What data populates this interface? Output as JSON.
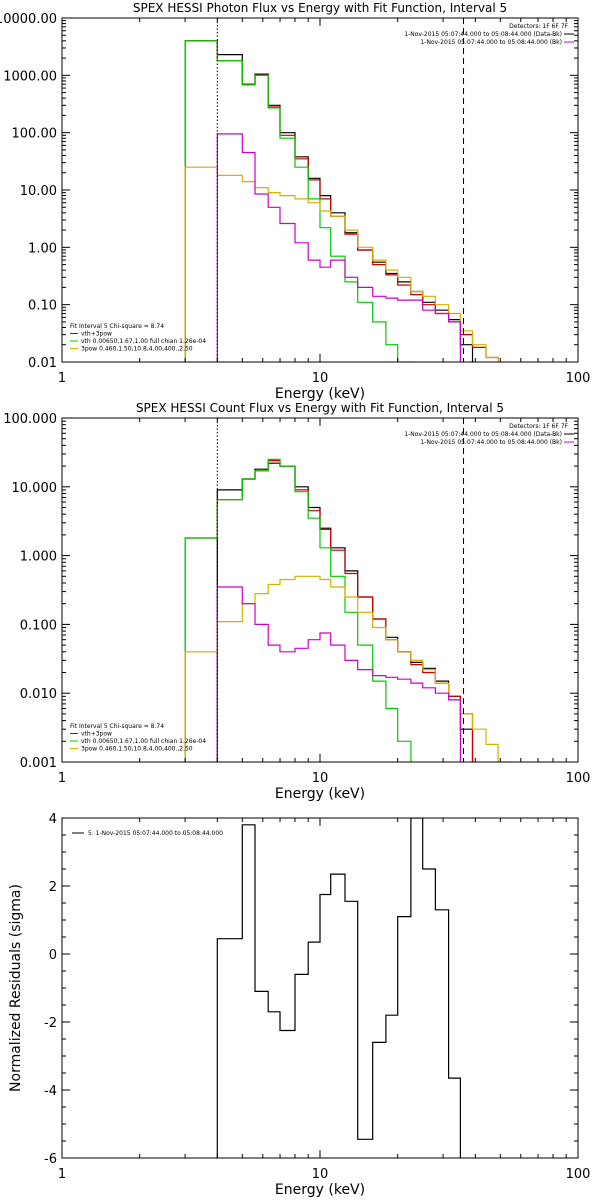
{
  "chart_data": [
    {
      "type": "line",
      "title": "SPEX HESSI Photon Flux vs Energy with Fit Function, Interval 5",
      "xlabel": "Energy (keV)",
      "ylabel": "",
      "xscale": "log",
      "yscale": "log",
      "xlim": [
        1,
        100
      ],
      "ylim": [
        0.01,
        10000
      ],
      "xtick_labels": [
        "1",
        "10",
        "100"
      ],
      "ytick_labels": [
        "10000.00",
        "1000.00",
        "100.00",
        "10.00",
        "1.00",
        "0.10",
        "0.01"
      ],
      "ytick_values": [
        10000,
        1000,
        100,
        10,
        1,
        0.1,
        0.01
      ],
      "fit_range_lines": [
        {
          "x": 4.0,
          "style": "dotted",
          "color": "#000000"
        },
        {
          "x": 36.0,
          "style": "dashed",
          "color": "#000000"
        }
      ],
      "legend_top": {
        "header": "Detectors: 1F 6F 7F",
        "entries": [
          {
            "label": "1-Nov-2015 05:07:44.000 to 05:08:44.000 (Data-Bk)",
            "color": "#000000"
          },
          {
            "label": "1-Nov-2015 05:07:44.000 to 05:08:44.000 (Bk)",
            "color": "#cc00cc"
          }
        ]
      },
      "legend_fit": {
        "header": "Fit Interval 5   Chi-square = 8.74",
        "entries": [
          {
            "label": "vth+3pow",
            "color": "#cc0000"
          },
          {
            "label": "vth 0.00650,1.67,1.00   full chian 1.26e-04",
            "color": "#00cc00"
          },
          {
            "label": "3pow 0.460,1.50,10.8,4.00,400.,2.50",
            "color": "#d4b000"
          }
        ]
      },
      "series": [
        {
          "color": "#000000",
          "edges": [
            3,
            4,
            5,
            5.6,
            6.3,
            7,
            8,
            9,
            10,
            11,
            12.5,
            14,
            16,
            18,
            20,
            22.5,
            25,
            28,
            31.5,
            35,
            39
          ],
          "values": [
            4000,
            2300,
            700,
            1050,
            300,
            100,
            38,
            16,
            8,
            4,
            1.8,
            0.9,
            0.55,
            0.35,
            0.25,
            0.17,
            0.11,
            0.08,
            0.055,
            0.02
          ]
        },
        {
          "color": "#cc0000",
          "edges": [
            3,
            4,
            5,
            5.6,
            6.3,
            7,
            8,
            9,
            10,
            11,
            12.5,
            14,
            16,
            18,
            20,
            22.5,
            25,
            28,
            31.5,
            35,
            39,
            44,
            49
          ],
          "values": [
            4000,
            1800,
            680,
            1000,
            280,
            90,
            35,
            15,
            7,
            3.5,
            1.7,
            0.9,
            0.5,
            0.33,
            0.22,
            0.15,
            0.1,
            0.07,
            0.05,
            0.03,
            0.018,
            0.012
          ]
        },
        {
          "color": "#00cc00",
          "edges": [
            3,
            4,
            5,
            5.6,
            6.3,
            7,
            8,
            9,
            10,
            11,
            12.5,
            14,
            16,
            18,
            20,
            22.5
          ],
          "values": [
            4000,
            1800,
            680,
            1000,
            270,
            80,
            25,
            7,
            2.2,
            0.7,
            0.25,
            0.11,
            0.05,
            0.02,
            0.008
          ]
        },
        {
          "color": "#d4b000",
          "edges": [
            3,
            4,
            5,
            5.6,
            6.3,
            7,
            8,
            9,
            10,
            11,
            12.5,
            14,
            16,
            18,
            20,
            22.5,
            25,
            28,
            31.5,
            35,
            39,
            44,
            49
          ],
          "values": [
            25,
            18,
            14,
            11,
            9,
            8,
            7,
            6,
            4.3,
            3.5,
            2,
            1,
            0.6,
            0.4,
            0.3,
            0.17,
            0.14,
            0.1,
            0.07,
            0.035,
            0.02,
            0.012
          ]
        },
        {
          "color": "#cc00cc",
          "edges": [
            4,
            5,
            5.6,
            6.3,
            7,
            8,
            9,
            10,
            11,
            12.5,
            14,
            16,
            18,
            20,
            22.5,
            25,
            28,
            31.5,
            35
          ],
          "values": [
            95,
            45,
            8.5,
            5,
            2.6,
            1.2,
            0.6,
            0.45,
            0.6,
            0.3,
            0.2,
            0.14,
            0.13,
            0.12,
            0.12,
            0.08,
            0.07,
            0.05
          ]
        }
      ]
    },
    {
      "type": "line",
      "title": "SPEX HESSI Count Flux vs Energy with Fit Function, Interval 5",
      "xlabel": "Energy (keV)",
      "ylabel": "",
      "xscale": "log",
      "yscale": "log",
      "xlim": [
        1,
        100
      ],
      "ylim": [
        0.001,
        100
      ],
      "xtick_labels": [
        "1",
        "10",
        "100"
      ],
      "ytick_labels": [
        "100.000",
        "10.000",
        "1.000",
        "0.100",
        "0.010",
        "0.001"
      ],
      "ytick_values": [
        100,
        10,
        1,
        0.1,
        0.01,
        0.001
      ],
      "fit_range_lines": [
        {
          "x": 4.0,
          "style": "dotted",
          "color": "#000000"
        },
        {
          "x": 36.0,
          "style": "dashed",
          "color": "#000000"
        }
      ],
      "legend_top": {
        "header": "Detectors: 1F 6F 7F",
        "entries": [
          {
            "label": "1-Nov-2015 05:07:44.000 to 05:08:44.000 (Data-Bk)",
            "color": "#000000"
          },
          {
            "label": "1-Nov-2015 05:07:44.000 to 05:08:44.000 (Bk)",
            "color": "#cc00cc"
          }
        ]
      },
      "legend_fit": {
        "header": "Fit Interval 5   Chi-square = 8.74",
        "entries": [
          {
            "label": "vth+3pow",
            "color": "#cc0000"
          },
          {
            "label": "vth 0.00650,1.67,1.00   full chian 1.26e-04",
            "color": "#00cc00"
          },
          {
            "label": "3pow 0.460,1.50,10.8,4.00,400.,2.50",
            "color": "#d4b000"
          }
        ]
      },
      "series": [
        {
          "color": "#000000",
          "edges": [
            4,
            5,
            5.6,
            6.3,
            7,
            8,
            9,
            10,
            11,
            12.5,
            14,
            16,
            18,
            20,
            22.5,
            25,
            28,
            31.5,
            35,
            39
          ],
          "values": [
            9,
            13,
            18,
            22,
            20,
            10,
            5,
            2.5,
            1.3,
            0.6,
            0.25,
            0.12,
            0.065,
            0.04,
            0.028,
            0.023,
            0.015,
            0.009,
            0.003
          ]
        },
        {
          "color": "#cc0000",
          "edges": [
            3,
            4,
            5,
            5.6,
            6.3,
            7,
            8,
            9,
            10,
            11,
            12.5,
            14,
            16,
            18,
            20,
            22.5,
            25,
            28,
            31.5,
            35,
            39
          ],
          "values": [
            1.8,
            6.5,
            13,
            17,
            24,
            20,
            9,
            4.5,
            2.4,
            1.2,
            0.55,
            0.25,
            0.12,
            0.06,
            0.04,
            0.026,
            0.02,
            0.014,
            0.009,
            0.005
          ]
        },
        {
          "color": "#00cc00",
          "edges": [
            3,
            4,
            5,
            5.6,
            6.3,
            7,
            8,
            9,
            10,
            11,
            12.5,
            14,
            16,
            18,
            20,
            22.5
          ],
          "values": [
            1.8,
            6.5,
            13,
            17,
            25,
            20,
            8.5,
            3.5,
            1.3,
            0.5,
            0.15,
            0.05,
            0.015,
            0.006,
            0.002
          ]
        },
        {
          "color": "#d4b000",
          "edges": [
            3,
            4,
            5,
            5.6,
            6.3,
            7,
            8,
            9,
            10,
            11,
            12.5,
            14,
            16,
            18,
            20,
            22.5,
            25,
            28,
            31.5,
            35,
            39,
            44,
            49,
            55
          ],
          "values": [
            0.04,
            0.11,
            0.2,
            0.28,
            0.38,
            0.45,
            0.5,
            0.5,
            0.45,
            0.35,
            0.25,
            0.15,
            0.09,
            0.06,
            0.04,
            0.03,
            0.022,
            0.014,
            0.008,
            0.005,
            0.003,
            0.0018,
            0.001
          ]
        },
        {
          "color": "#cc00cc",
          "edges": [
            4,
            5,
            5.6,
            6.3,
            7,
            8,
            9,
            10,
            11,
            12.5,
            14,
            16,
            18,
            20,
            22.5,
            25,
            28,
            31.5,
            35
          ],
          "values": [
            0.35,
            0.2,
            0.1,
            0.05,
            0.04,
            0.045,
            0.06,
            0.075,
            0.05,
            0.03,
            0.022,
            0.018,
            0.017,
            0.016,
            0.014,
            0.012,
            0.01,
            0.008
          ]
        }
      ]
    },
    {
      "type": "line",
      "title": "",
      "xlabel": "Energy (keV)",
      "ylabel": "Normalized Residuals (sigma)",
      "xscale": "log",
      "yscale": "linear",
      "xlim": [
        1,
        100
      ],
      "ylim": [
        -6,
        4
      ],
      "xtick_labels": [
        "1",
        "10",
        "100"
      ],
      "ytick_labels": [
        "4",
        "2",
        "0",
        "-2",
        "-4",
        "-6"
      ],
      "ytick_values": [
        4,
        2,
        0,
        -2,
        -4,
        -6
      ],
      "legend": {
        "entries": [
          {
            "label": "5. 1-Nov-2015 05:07:44.000 to 05:08:44.000",
            "color": "#000000"
          }
        ]
      },
      "series": [
        {
          "color": "#000000",
          "edges": [
            4,
            5,
            5.6,
            6.3,
            7,
            8,
            9,
            10,
            11,
            12.5,
            14,
            16,
            18,
            20,
            22.5,
            25,
            28,
            31.5,
            35
          ],
          "values": [
            0.45,
            3.8,
            -1.1,
            -1.7,
            -2.25,
            -0.6,
            0.35,
            1.75,
            2.35,
            1.55,
            -5.45,
            -2.6,
            -1.8,
            1.1,
            4.3,
            2.5,
            1.3,
            -3.65
          ]
        }
      ]
    }
  ]
}
